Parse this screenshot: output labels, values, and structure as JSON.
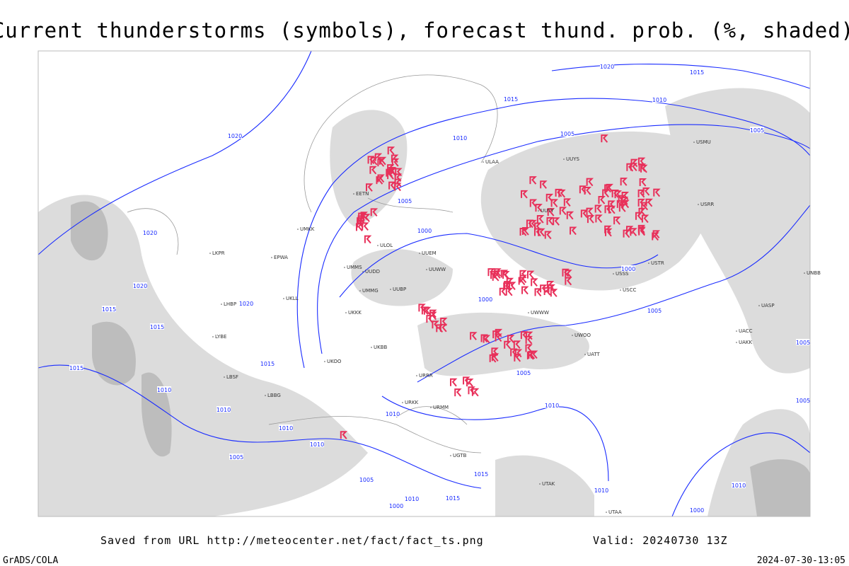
{
  "header": {
    "title": "Current thunderstorms (symbols), forecast thund. prob. (%, shaded)"
  },
  "footer": {
    "saved": "Saved from URL http://meteocenter.net/fact/fact_ts.png",
    "valid": "Valid: 20240730 13Z",
    "left": "GrADS/COLA",
    "right": "2024-07-30-13:05"
  },
  "isobar_labels": [
    "1020",
    "1015",
    "1015",
    "1010",
    "1005",
    "1020",
    "1010",
    "1005",
    "1005",
    "1000",
    "1000",
    "1020",
    "1020",
    "1015",
    "1015",
    "1020",
    "1000",
    "1005",
    "1015",
    "1015",
    "1005",
    "1010",
    "1010",
    "1010",
    "1010",
    "1010",
    "1010",
    "1005",
    "1015",
    "1005",
    "1010",
    "1000",
    "1010",
    "1015",
    "1010",
    "1000",
    "1005",
    "1005"
  ],
  "stations": [
    "UUEM",
    "UUWW",
    "UUDD",
    "UUBP",
    "UMMS",
    "UMKK",
    "EPWA",
    "UKLL",
    "UKKK",
    "UKOO",
    "URRR",
    "URKK",
    "URMM",
    "UUYY",
    "UUYS",
    "USSS",
    "USCC",
    "USTR",
    "UWWW",
    "ULAA",
    "ULOL",
    "EETN",
    "UMMG",
    "UKBB",
    "UWOO",
    "USRR",
    "USMU",
    "UATT",
    "UACC",
    "UAKK",
    "UASP",
    "UNBB",
    "LKPR",
    "LHBP",
    "LYBE",
    "LBSF",
    "LBBG",
    "UGTB",
    "UTAK",
    "UTAA"
  ]
}
